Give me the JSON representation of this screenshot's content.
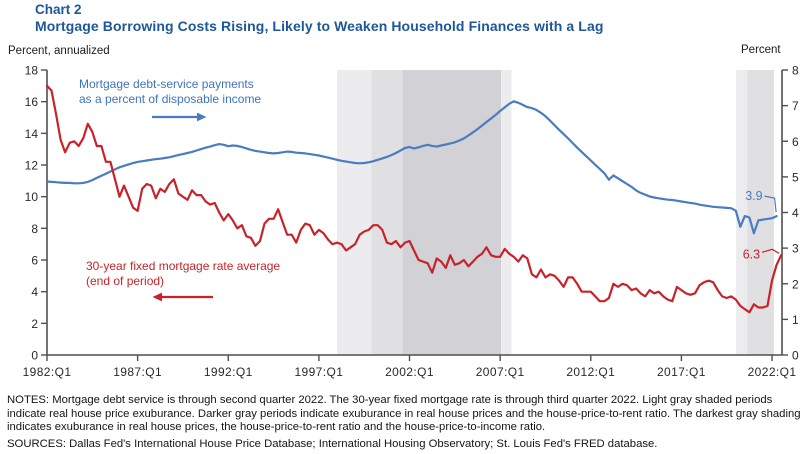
{
  "header": {
    "chart_label": "Chart 2",
    "title": "Mortgage Borrowing Costs Rising, Likely to Weaken Household Finances with a Lag"
  },
  "notes": {
    "notes_text": "NOTES: Mortgage debt service is through second quarter 2022. The 30-year fixed mortgage rate is through third quarter 2022. Light gray shaded periods indicate real house price exuburance. Darker gray periods indicate exuburance in real house prices and the house-price-to-rent ratio. The darkest gray shading indicates exuburance in real house prices, the house-price-to-rent ratio and the house-price-to-income ratio.",
    "sources_text": "SOURCES: Dallas Fed's International House Price Database; International Housing Observatory; St. Louis Fed's FRED database."
  },
  "chart_data": {
    "type": "line",
    "title": "Mortgage Borrowing Costs Rising, Likely to Weaken Household Finances with a Lag",
    "x_start": 1982.0,
    "x_step": 0.25,
    "x_ticks": [
      {
        "t": 1982,
        "label": "1982:Q1"
      },
      {
        "t": 1987,
        "label": "1987:Q1"
      },
      {
        "t": 1992,
        "label": "1992:Q1"
      },
      {
        "t": 1997,
        "label": "1997:Q1"
      },
      {
        "t": 2002,
        "label": "2002:Q1"
      },
      {
        "t": 2007,
        "label": "2007:Q1"
      },
      {
        "t": 2012,
        "label": "2012:Q1"
      },
      {
        "t": 2017,
        "label": "2017:Q1"
      },
      {
        "t": 2022,
        "label": "2022:Q1"
      }
    ],
    "left_axis": {
      "label": "Percent, annualized",
      "min": 0,
      "max": 18,
      "tick_step": 2,
      "ticks": [
        "0",
        "2",
        "4",
        "6",
        "8",
        "10",
        "12",
        "14",
        "16",
        "18"
      ]
    },
    "right_axis": {
      "label": "Percent",
      "min": 0,
      "max": 8,
      "tick_step": 1,
      "ticks": [
        "0",
        "1",
        "2",
        "3",
        "4",
        "5",
        "6",
        "7",
        "8"
      ]
    },
    "band_colors": {
      "light": "#ececee",
      "medium": "#e0e0e3",
      "dark": "#d2d2d6"
    },
    "shaded_bands": [
      {
        "from": 1998.0,
        "to": 1999.9,
        "level": "light"
      },
      {
        "from": 1999.9,
        "to": 2001.62,
        "level": "medium"
      },
      {
        "from": 2001.62,
        "to": 2007.05,
        "level": "dark"
      },
      {
        "from": 2007.05,
        "to": 2007.62,
        "level": "light"
      },
      {
        "from": 2020.02,
        "to": 2020.63,
        "level": "light"
      },
      {
        "from": 2020.63,
        "to": 2022.11,
        "level": "medium"
      }
    ],
    "series": [
      {
        "id": "dsr",
        "name": "Mortgage debt-service payments as a percent of disposable income",
        "legend_line1": "Mortgage debt-service payments",
        "legend_line2": "as a percent of disposable income",
        "axis": "right",
        "color": "#4a7cc0",
        "end_label": "3.9",
        "values": [
          4.87,
          4.86,
          4.85,
          4.84,
          4.83,
          4.83,
          4.82,
          4.82,
          4.83,
          4.86,
          4.91,
          4.97,
          5.03,
          5.09,
          5.15,
          5.21,
          5.27,
          5.31,
          5.35,
          5.39,
          5.42,
          5.44,
          5.46,
          5.48,
          5.5,
          5.51,
          5.53,
          5.55,
          5.58,
          5.61,
          5.64,
          5.67,
          5.7,
          5.74,
          5.78,
          5.82,
          5.85,
          5.89,
          5.92,
          5.9,
          5.86,
          5.88,
          5.87,
          5.84,
          5.8,
          5.76,
          5.73,
          5.71,
          5.69,
          5.67,
          5.66,
          5.67,
          5.69,
          5.71,
          5.7,
          5.68,
          5.67,
          5.66,
          5.64,
          5.62,
          5.6,
          5.57,
          5.54,
          5.51,
          5.48,
          5.45,
          5.43,
          5.41,
          5.39,
          5.38,
          5.39,
          5.41,
          5.44,
          5.48,
          5.52,
          5.56,
          5.61,
          5.67,
          5.74,
          5.81,
          5.84,
          5.8,
          5.83,
          5.87,
          5.9,
          5.87,
          5.85,
          5.88,
          5.91,
          5.94,
          5.97,
          6.02,
          6.08,
          6.16,
          6.25,
          6.34,
          6.44,
          6.54,
          6.64,
          6.74,
          6.85,
          6.95,
          7.05,
          7.12,
          7.08,
          7.02,
          6.96,
          6.93,
          6.88,
          6.8,
          6.7,
          6.58,
          6.45,
          6.32,
          6.2,
          6.08,
          5.95,
          5.82,
          5.7,
          5.58,
          5.46,
          5.34,
          5.22,
          5.1,
          4.92,
          5.04,
          4.96,
          4.88,
          4.8,
          4.72,
          4.62,
          4.55,
          4.5,
          4.45,
          4.42,
          4.4,
          4.38,
          4.36,
          4.35,
          4.33,
          4.31,
          4.29,
          4.27,
          4.25,
          4.22,
          4.2,
          4.18,
          4.16,
          4.15,
          4.14,
          4.13,
          4.12,
          4.05,
          3.6,
          3.9,
          3.86,
          3.42,
          3.78,
          3.8,
          3.82,
          3.84,
          3.9
        ]
      },
      {
        "id": "mortgage_rate",
        "name": "30-year fixed mortgage rate average (end of period)",
        "legend_line1": "30-year fixed mortgage rate average",
        "legend_line2": "(end of period)",
        "axis": "left",
        "color": "#c7232a",
        "end_label": "6.3",
        "values": [
          17.0,
          16.7,
          15.2,
          13.6,
          12.8,
          13.4,
          13.5,
          13.2,
          13.7,
          14.6,
          14.1,
          13.2,
          13.2,
          12.2,
          12.2,
          11.1,
          10.0,
          10.7,
          10.0,
          9.3,
          9.1,
          10.5,
          10.8,
          10.7,
          9.9,
          10.5,
          10.3,
          10.8,
          11.1,
          10.2,
          10.0,
          9.8,
          10.4,
          10.1,
          10.1,
          9.7,
          9.5,
          9.6,
          9.0,
          8.5,
          8.9,
          8.5,
          8.0,
          8.2,
          7.5,
          7.4,
          6.9,
          7.2,
          8.3,
          8.6,
          8.6,
          9.2,
          8.4,
          7.6,
          7.6,
          7.1,
          7.9,
          8.3,
          8.2,
          7.6,
          7.9,
          7.7,
          7.3,
          7.0,
          7.1,
          7.0,
          6.6,
          6.8,
          7.0,
          7.6,
          7.8,
          7.9,
          8.2,
          8.2,
          7.9,
          7.1,
          7.0,
          7.2,
          6.8,
          7.1,
          7.2,
          6.6,
          6.0,
          5.9,
          5.8,
          5.2,
          6.1,
          5.9,
          5.5,
          6.3,
          5.7,
          5.8,
          6.0,
          5.6,
          5.9,
          6.2,
          6.4,
          6.8,
          6.3,
          6.2,
          6.2,
          6.7,
          6.4,
          6.2,
          5.9,
          6.3,
          6.1,
          5.1,
          4.9,
          5.4,
          4.9,
          5.1,
          5.0,
          4.7,
          4.3,
          4.9,
          4.9,
          4.5,
          4.0,
          4.0,
          4.0,
          3.7,
          3.4,
          3.4,
          3.6,
          4.5,
          4.3,
          4.5,
          4.4,
          4.1,
          4.2,
          3.9,
          3.7,
          4.1,
          3.9,
          4.0,
          3.7,
          3.5,
          3.4,
          4.3,
          4.1,
          3.9,
          3.8,
          3.9,
          4.4,
          4.6,
          4.7,
          4.6,
          4.1,
          3.7,
          3.6,
          3.7,
          3.5,
          3.1,
          2.9,
          2.7,
          3.2,
          3.0,
          3.0,
          3.1,
          4.7,
          5.7,
          6.3
        ]
      }
    ]
  }
}
